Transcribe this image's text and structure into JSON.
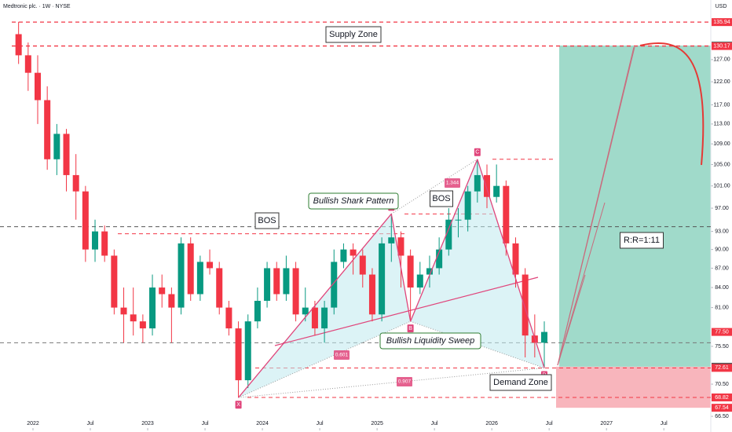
{
  "chart_data": {
    "type": "candlestick",
    "title": "Medtronic plc. · 1W · NYSE",
    "currency": "USD",
    "log_scale": true,
    "up_color": "#089981",
    "down_color": "#f23645",
    "ylim": [
      65.1,
      141.5
    ],
    "yticks": [
      {
        "value": 127,
        "label": "127.00"
      },
      {
        "value": 122,
        "label": "122.00"
      },
      {
        "value": 117,
        "label": "117.00"
      },
      {
        "value": 113,
        "label": "113.00"
      },
      {
        "value": 109,
        "label": "109.00"
      },
      {
        "value": 105,
        "label": "105.00"
      },
      {
        "value": 101,
        "label": "101.00"
      },
      {
        "value": 97,
        "label": "97.00"
      },
      {
        "value": 93,
        "label": "93.00"
      },
      {
        "value": 90,
        "label": "90.00"
      },
      {
        "value": 87,
        "label": "87.00"
      },
      {
        "value": 84,
        "label": "84.00"
      },
      {
        "value": 81,
        "label": "81.00"
      },
      {
        "value": 75.5,
        "label": "75.50"
      },
      {
        "value": 70.5,
        "label": "70.50"
      },
      {
        "value": 66.5,
        "label": "66.50"
      }
    ],
    "xticks": [
      {
        "value": "2022-01",
        "label": "2022"
      },
      {
        "value": "2022-07",
        "label": "Jul"
      },
      {
        "value": "2023-01",
        "label": "2023"
      },
      {
        "value": "2023-07",
        "label": "Jul"
      },
      {
        "value": "2024-01",
        "label": "2024"
      },
      {
        "value": "2024-07",
        "label": "Jul"
      },
      {
        "value": "2025-01",
        "label": "2025"
      },
      {
        "value": "2025-07",
        "label": "Jul"
      },
      {
        "value": "2026-01",
        "label": "2026"
      },
      {
        "value": "2026-07",
        "label": "Jul"
      },
      {
        "value": "2027-01",
        "label": "2027"
      },
      {
        "value": "2027-07",
        "label": "Jul"
      }
    ],
    "x": [
      "2021-11",
      "2021-12",
      "2022-01",
      "2022-02",
      "2022-03",
      "2022-04",
      "2022-05",
      "2022-06",
      "2022-07",
      "2022-08",
      "2022-09",
      "2022-10",
      "2022-11",
      "2022-12",
      "2023-01",
      "2023-02",
      "2023-03",
      "2023-04",
      "2023-05",
      "2023-06",
      "2023-07",
      "2023-08",
      "2023-09",
      "2023-10",
      "2023-11",
      "2023-12",
      "2024-01",
      "2024-02",
      "2024-03",
      "2024-04",
      "2024-05",
      "2024-06",
      "2024-07",
      "2024-08",
      "2024-09",
      "2024-10",
      "2024-11",
      "2024-12",
      "2025-01",
      "2025-02",
      "2025-03",
      "2025-04",
      "2025-05",
      "2025-06",
      "2025-07",
      "2025-08",
      "2025-09",
      "2025-10",
      "2025-11",
      "2025-12",
      "2026-01",
      "2026-02",
      "2026-03",
      "2026-04",
      "2026-05",
      "2026-06"
    ],
    "open": [
      133,
      128,
      124,
      118,
      106,
      111,
      103,
      100,
      90,
      93,
      89,
      81,
      80,
      79,
      78,
      84,
      83,
      81,
      91,
      83,
      88,
      87,
      81,
      78,
      71,
      79,
      82,
      87,
      83,
      87,
      80,
      81,
      78,
      81,
      88,
      90,
      89,
      86,
      80,
      91,
      92,
      89,
      84,
      86,
      87,
      90,
      95,
      95,
      100,
      103,
      99,
      101,
      91,
      86,
      77,
      76
    ],
    "high": [
      136,
      131,
      128,
      121,
      113,
      112,
      107,
      101,
      95,
      94,
      90,
      84,
      84,
      80,
      86,
      86,
      84,
      92,
      92,
      89,
      90,
      88,
      82,
      79,
      80,
      84,
      88,
      88,
      89,
      88,
      84,
      82,
      82,
      90,
      91,
      91,
      90,
      87,
      92,
      96,
      93,
      90,
      88,
      89,
      92,
      97,
      97,
      101,
      106,
      105,
      105,
      102,
      92,
      87,
      80,
      79
    ],
    "low": [
      126,
      120,
      113,
      104,
      103,
      100,
      95,
      88,
      88,
      88,
      80,
      76,
      77,
      76,
      77,
      81,
      76,
      80,
      82,
      82,
      86,
      80,
      77,
      68.8,
      70,
      78,
      81,
      82,
      82,
      79,
      79,
      77,
      76,
      80,
      87,
      86,
      84,
      79,
      79,
      88,
      84,
      79,
      83,
      84,
      86,
      89,
      92,
      93,
      98,
      97,
      98,
      89,
      84,
      74,
      74,
      72.6
    ],
    "close": [
      128,
      124,
      118,
      106,
      111,
      103,
      100,
      90,
      93,
      89,
      81,
      80,
      79,
      78,
      84,
      83,
      81,
      91,
      83,
      88,
      87,
      81,
      78,
      71,
      79,
      82,
      87,
      83,
      87,
      80,
      81,
      78,
      81,
      88,
      90,
      89,
      86,
      80,
      91,
      92,
      89,
      84,
      86,
      87,
      90,
      95,
      95,
      100,
      103,
      99,
      101,
      91,
      86,
      77,
      76,
      77.5
    ],
    "levels": [
      135.94,
      130.17,
      92.6,
      96,
      106,
      93.8,
      76,
      68.82,
      72.6
    ],
    "price_labels": [
      {
        "value": 135.94,
        "label": "135.94",
        "color": "#f23645"
      },
      {
        "value": 130.29,
        "label": "130.29",
        "color": "#089981"
      },
      {
        "value": 130.17,
        "label": "130.17",
        "color": "#f23645"
      },
      {
        "value": 77.5,
        "label": "77.50",
        "color": "#f23645"
      },
      {
        "value": 72.76,
        "label": "72.76",
        "color": "#555555"
      },
      {
        "value": 72.61,
        "label": "72.61",
        "color": "#f23645"
      },
      {
        "value": 68.82,
        "label": "68.82",
        "color": "#f23645"
      },
      {
        "value": 67.54,
        "label": "67.54",
        "color": "#f23645"
      }
    ],
    "zones": [
      {
        "name": "target",
        "top": 130.29,
        "bottom": 72.76,
        "color": "#8fd3c1"
      },
      {
        "name": "demand",
        "top": 72.76,
        "bottom": 67.54,
        "color": "#f7a8b0"
      }
    ],
    "pattern": {
      "points": [
        {
          "label": "X",
          "x": "2023-10",
          "value": 68.8
        },
        {
          "label": "A",
          "x": "2025-02",
          "value": 96
        },
        {
          "label": "B",
          "x": "2025-04",
          "value": 79
        },
        {
          "label": "C",
          "x": "2025-11",
          "value": 106
        },
        {
          "label": "D",
          "x": "2026-06",
          "value": 72.6
        }
      ],
      "ratios": [
        "1.344",
        "0.601",
        "0.907",
        "1.29"
      ]
    },
    "annotations": [
      "Supply Zone",
      "BOS",
      "BOS",
      "Bullish Shark Pattern",
      "Bullish Liquidity Sweep",
      "Demand Zone",
      "R:R=1:11"
    ]
  }
}
